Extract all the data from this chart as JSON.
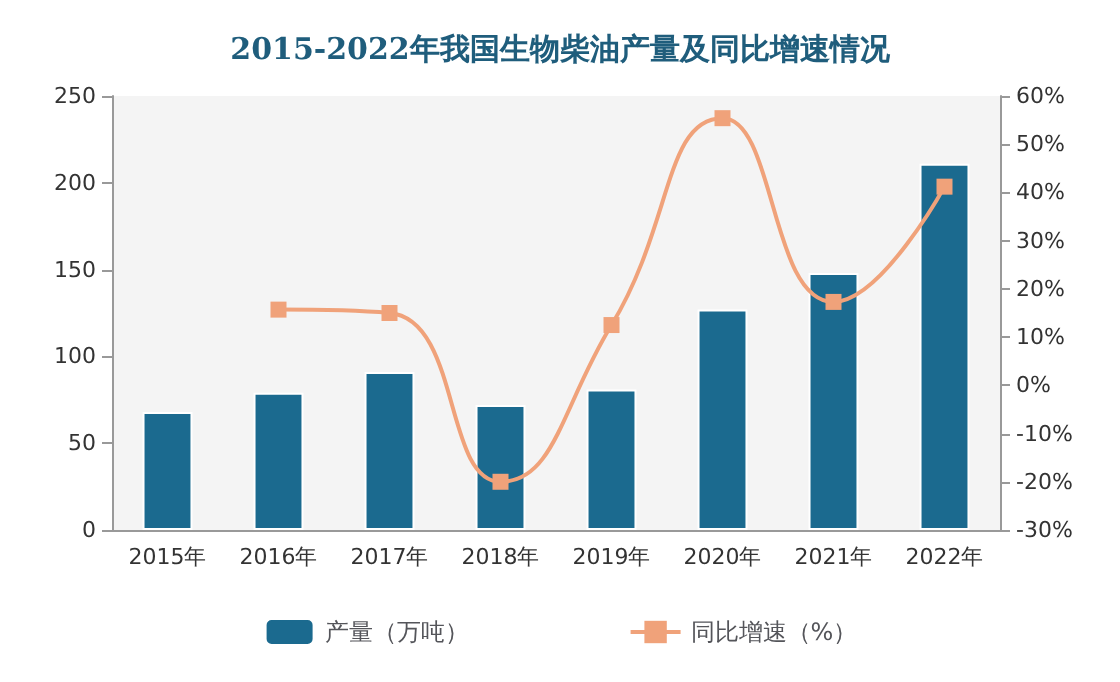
{
  "chart_data": {
    "type": "bar",
    "title": "2015-2022年我国生物柴油产量及同比增速情况",
    "categories": [
      "2015年",
      "2016年",
      "2017年",
      "2018年",
      "2019年",
      "2020年",
      "2021年",
      "2022年"
    ],
    "series": [
      {
        "name": "产量（万吨）",
        "color": "#1b6a8f",
        "values": [
          68,
          79,
          91,
          72,
          81,
          127,
          148,
          211
        ]
      },
      {
        "name": "同比增速（%）",
        "type": "line",
        "axis": "y2",
        "color": "#f0a27a",
        "marker": "square",
        "values": [
          null,
          15.7,
          15,
          -20,
          12.5,
          55.4,
          17.3,
          41.2
        ]
      }
    ],
    "ylim": [
      0,
      250
    ],
    "yticks": [
      0,
      50,
      100,
      150,
      200,
      250
    ],
    "y2lim": [
      -30,
      60
    ],
    "y2ticks": [
      {
        "value": -30,
        "label": "-30%"
      },
      {
        "value": -20,
        "label": "-20%"
      },
      {
        "value": -10,
        "label": "-10%"
      },
      {
        "value": 0,
        "label": "0%"
      },
      {
        "value": 10,
        "label": "10%"
      },
      {
        "value": 20,
        "label": "20%"
      },
      {
        "value": 30,
        "label": "30%"
      },
      {
        "value": 40,
        "label": "40%"
      },
      {
        "value": 50,
        "label": "50%"
      },
      {
        "value": 60,
        "label": "60%"
      }
    ],
    "legend": "bottom"
  }
}
